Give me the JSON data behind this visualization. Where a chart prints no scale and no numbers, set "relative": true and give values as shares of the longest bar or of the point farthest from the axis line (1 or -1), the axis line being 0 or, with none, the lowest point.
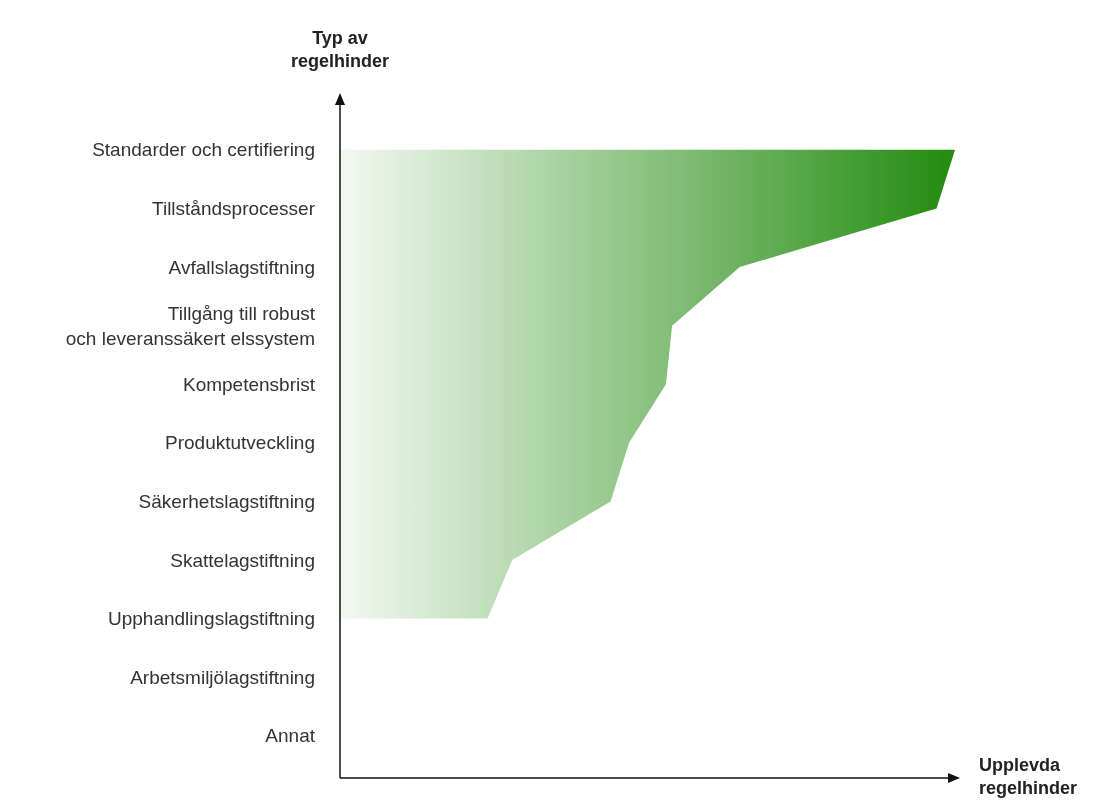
{
  "chart_data": {
    "type": "area",
    "orientation": "horizontal",
    "relative": true,
    "xlabel": "Upplevda\nregelhinder",
    "ylabel": "Typ av\nregelhinder",
    "categories": [
      "Standarder och certifiering",
      "Tillståndsprocesser",
      "Avfallslagstiftning",
      "Tillgång till robust\noch leveranssäkert elssystem",
      "Kompetensbrist",
      "Produktutveckling",
      "Säkerhetslagstiftning",
      "Skattelagstiftning",
      "Upphandlingslagstiftning",
      "Arbetsmiljölagstiftning",
      "Annat"
    ],
    "series": [
      {
        "color": "#228b0f",
        "values": [
          1,
          0.97,
          0.65,
          0.54,
          0.53,
          0.47,
          0.44,
          0.28,
          0.24,
          null,
          null
        ]
      }
    ],
    "marker": "none"
  }
}
